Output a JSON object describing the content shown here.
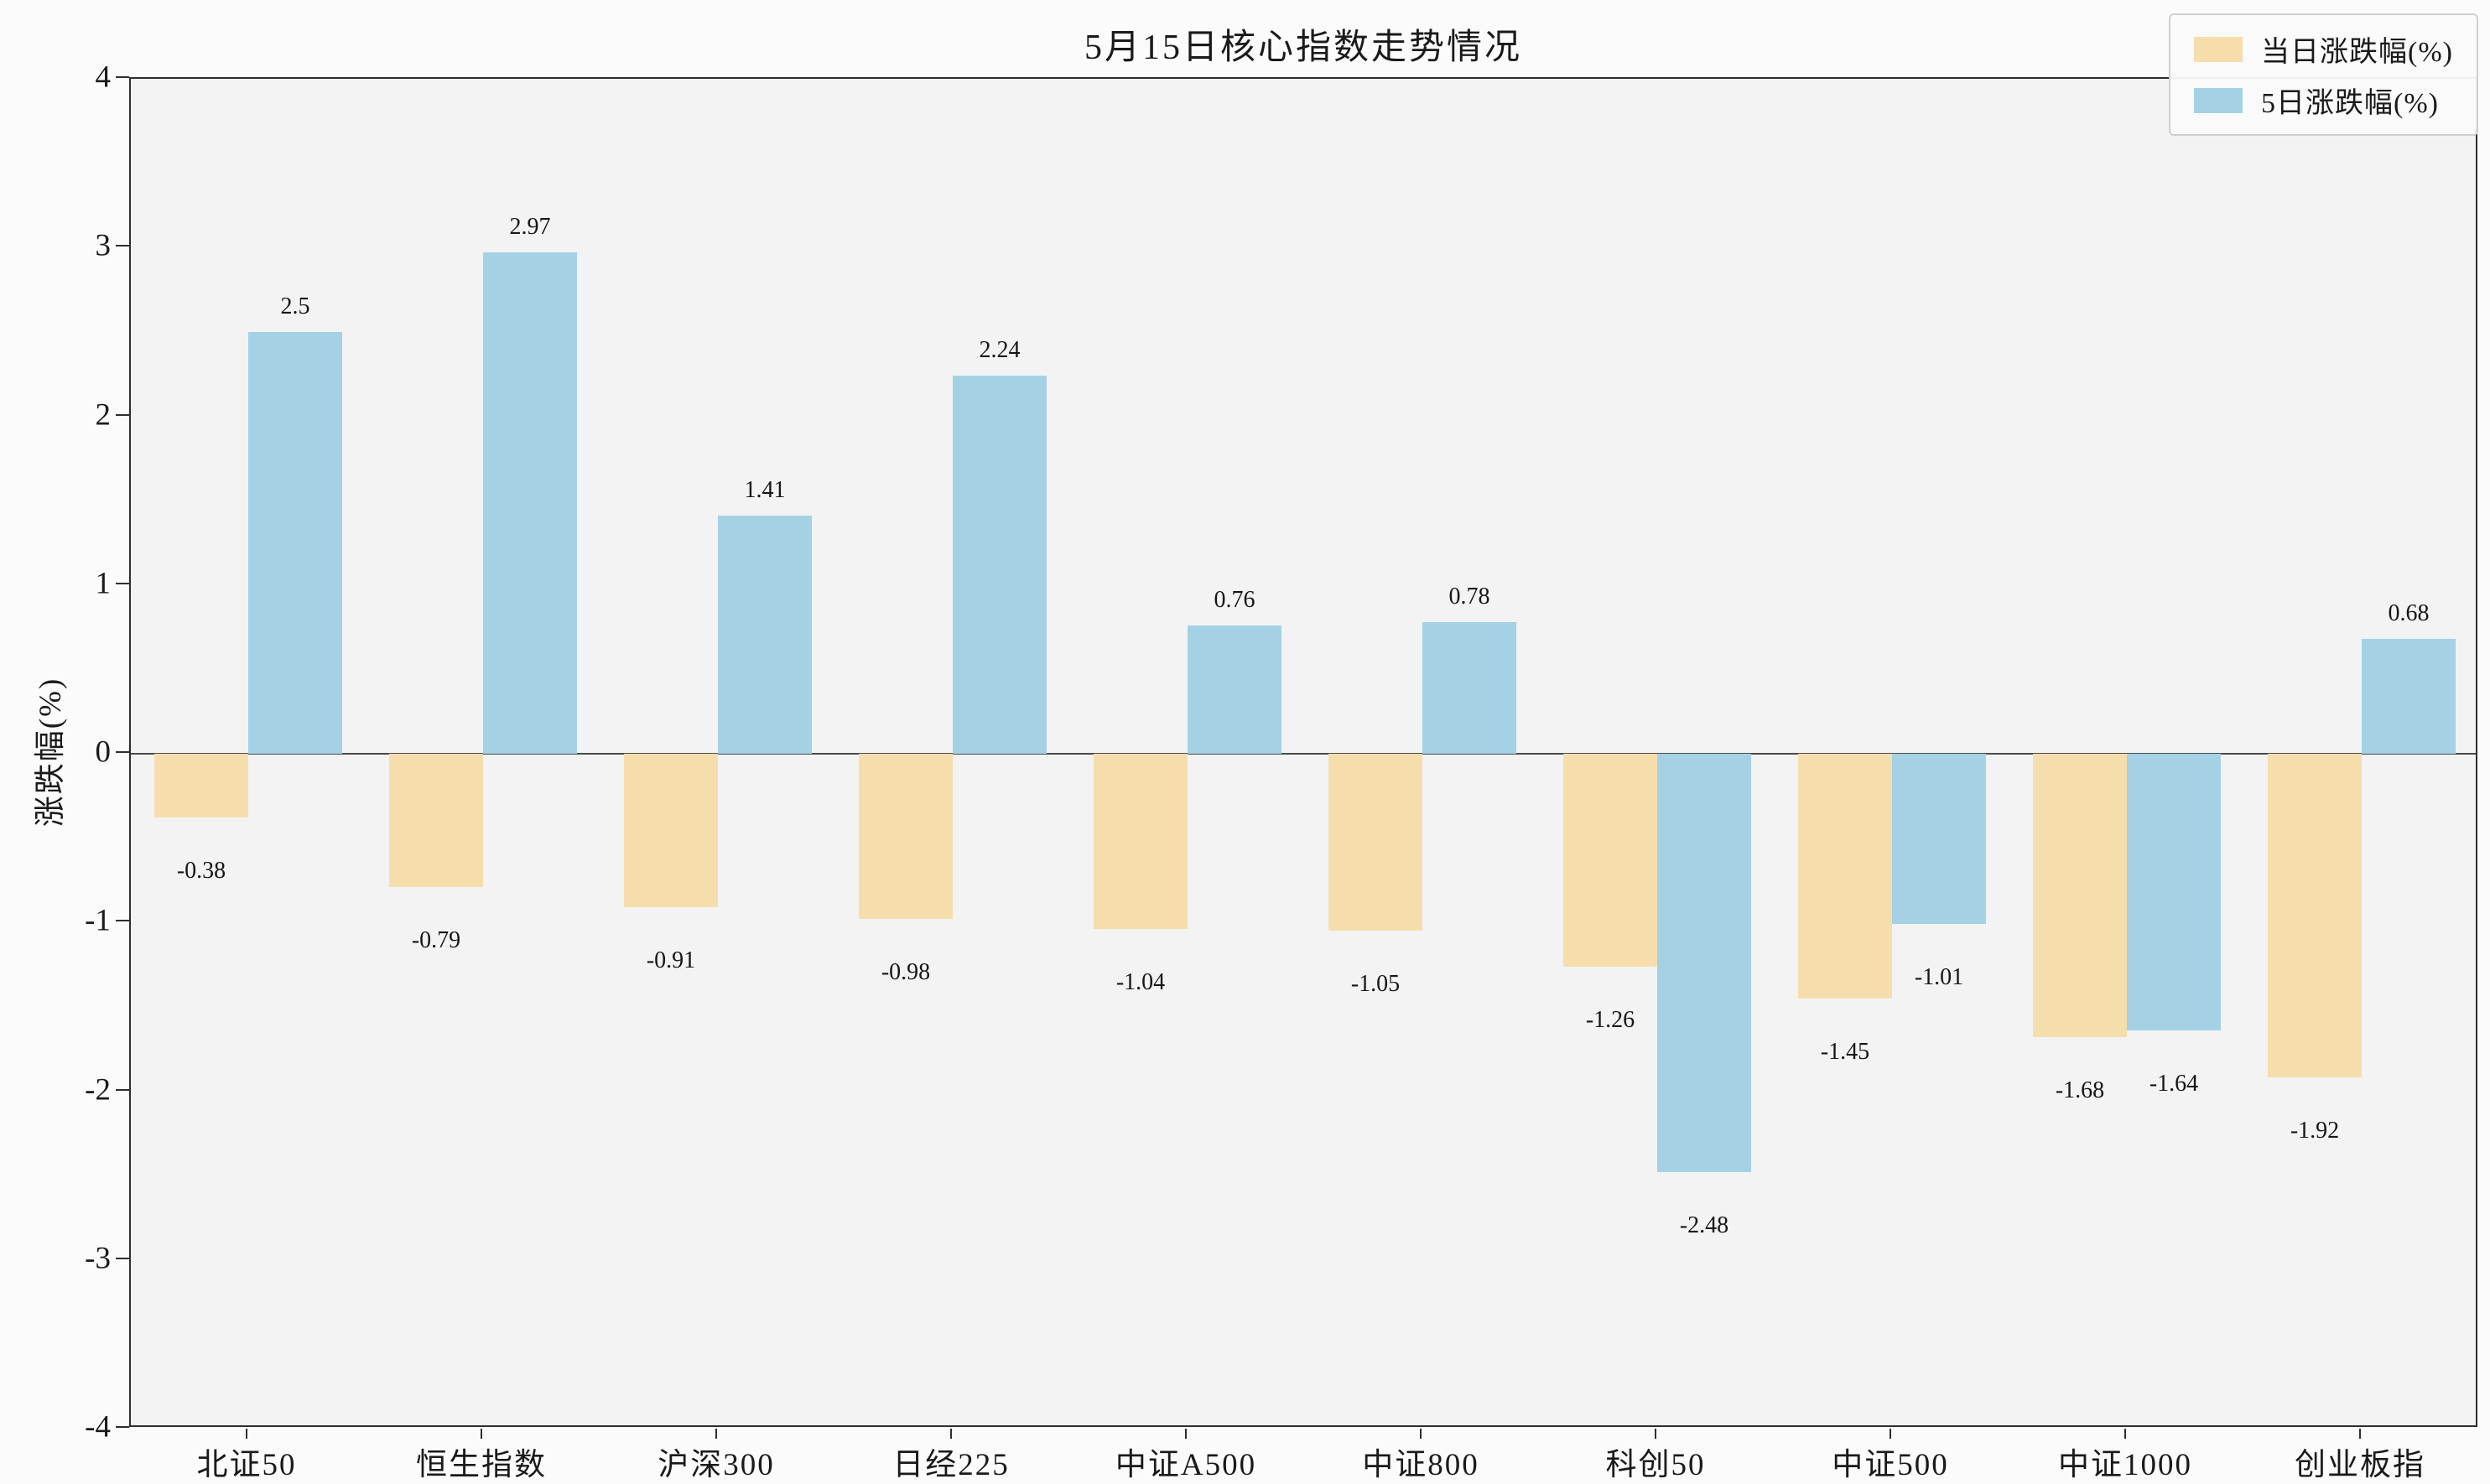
{
  "chart_data": {
    "type": "bar",
    "title": "5月15日核心指数走势情况",
    "xlabel": "",
    "ylabel": "涨跌幅(%)",
    "categories": [
      "北证50",
      "恒生指数",
      "沪深300",
      "日经225",
      "中证A500",
      "中证800",
      "科创50",
      "中证500",
      "中证1000",
      "创业板指"
    ],
    "series": [
      {
        "name": "当日涨跌幅(%)",
        "color": "#F6DEAC",
        "values": [
          -0.38,
          -0.79,
          -0.91,
          -0.98,
          -1.04,
          -1.05,
          -1.26,
          -1.45,
          -1.68,
          -1.92
        ]
      },
      {
        "name": "5日涨跌幅(%)",
        "color": "#A4D2E4",
        "values": [
          2.5,
          2.97,
          1.41,
          2.24,
          0.76,
          0.78,
          -2.48,
          -1.01,
          -1.64,
          0.68
        ]
      }
    ],
    "ylim": [
      -4,
      4
    ],
    "yticks": [
      -4,
      -3,
      -2,
      -1,
      0,
      1,
      2,
      3,
      4
    ],
    "grid": false,
    "legend_position": "top-right",
    "bar_labels_shown": true,
    "colors": {
      "plot_background": "#f3f3f4",
      "figure_background": "#fbfbfb",
      "axis": "#2e2e2e",
      "zero_line": "#4a4a4a",
      "series_daily": "#F6DEAC",
      "series_5day": "#A4D2E4"
    }
  }
}
